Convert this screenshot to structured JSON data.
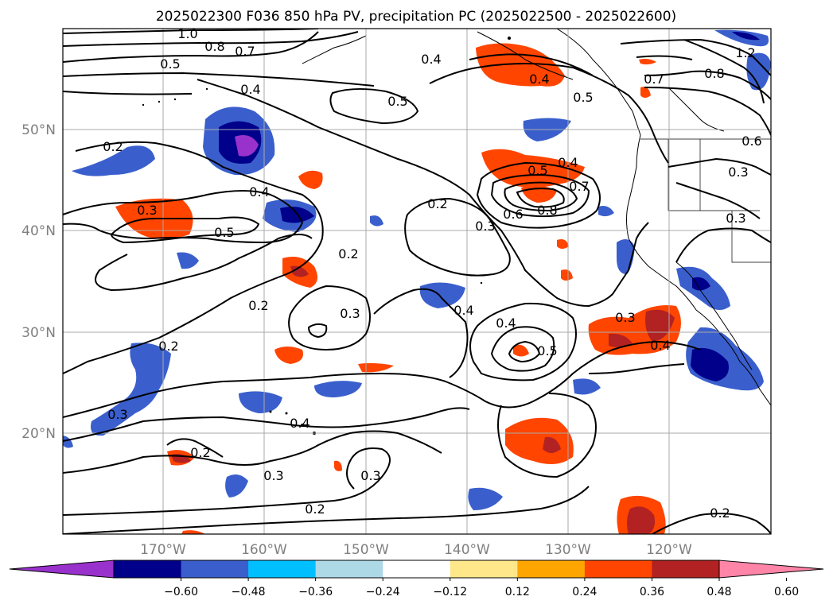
{
  "title": "2025022300 F036 850 hPa PV, precipitation PC (2025022500 - 2025022600)",
  "map": {
    "lon_labels": [
      "170°W",
      "160°W",
      "150°W",
      "140°W",
      "130°W",
      "120°W"
    ],
    "lat_labels": [
      "50°N",
      "40°N",
      "30°N",
      "20°N"
    ],
    "contour_labels": [
      "1.0",
      "0.8",
      "0.7",
      "0.5",
      "0.4",
      "0.4",
      "0.5",
      "0.2",
      "0.3",
      "0.4",
      "0.5",
      "0.2",
      "0.2",
      "0.3",
      "0.3",
      "0.2",
      "0.3",
      "0.4",
      "0.5",
      "0.4",
      "0.5",
      "0.4",
      "0.7",
      "0.6",
      "0.8",
      "0.3",
      "0.4",
      "0.2",
      "0.3",
      "0.2",
      "0.3",
      "0.2",
      "0.4",
      "0.3",
      "0.4",
      "0.6",
      "0.8",
      "1.2",
      "0.7",
      "0.2",
      "0.3",
      "0.5"
    ]
  },
  "colorbar": {
    "ticks": [
      "−0.60",
      "−0.48",
      "−0.36",
      "−0.24",
      "−0.12",
      "0.12",
      "0.24",
      "0.36",
      "0.48",
      "0.60"
    ],
    "colors": [
      "#9932cc",
      "#00008b",
      "#3a5fcd",
      "#00bfff",
      "#add8e6",
      "#ffffff",
      "#ffe78a",
      "#ffa500",
      "#ff4500",
      "#b22222",
      "#ff85a8"
    ]
  }
}
